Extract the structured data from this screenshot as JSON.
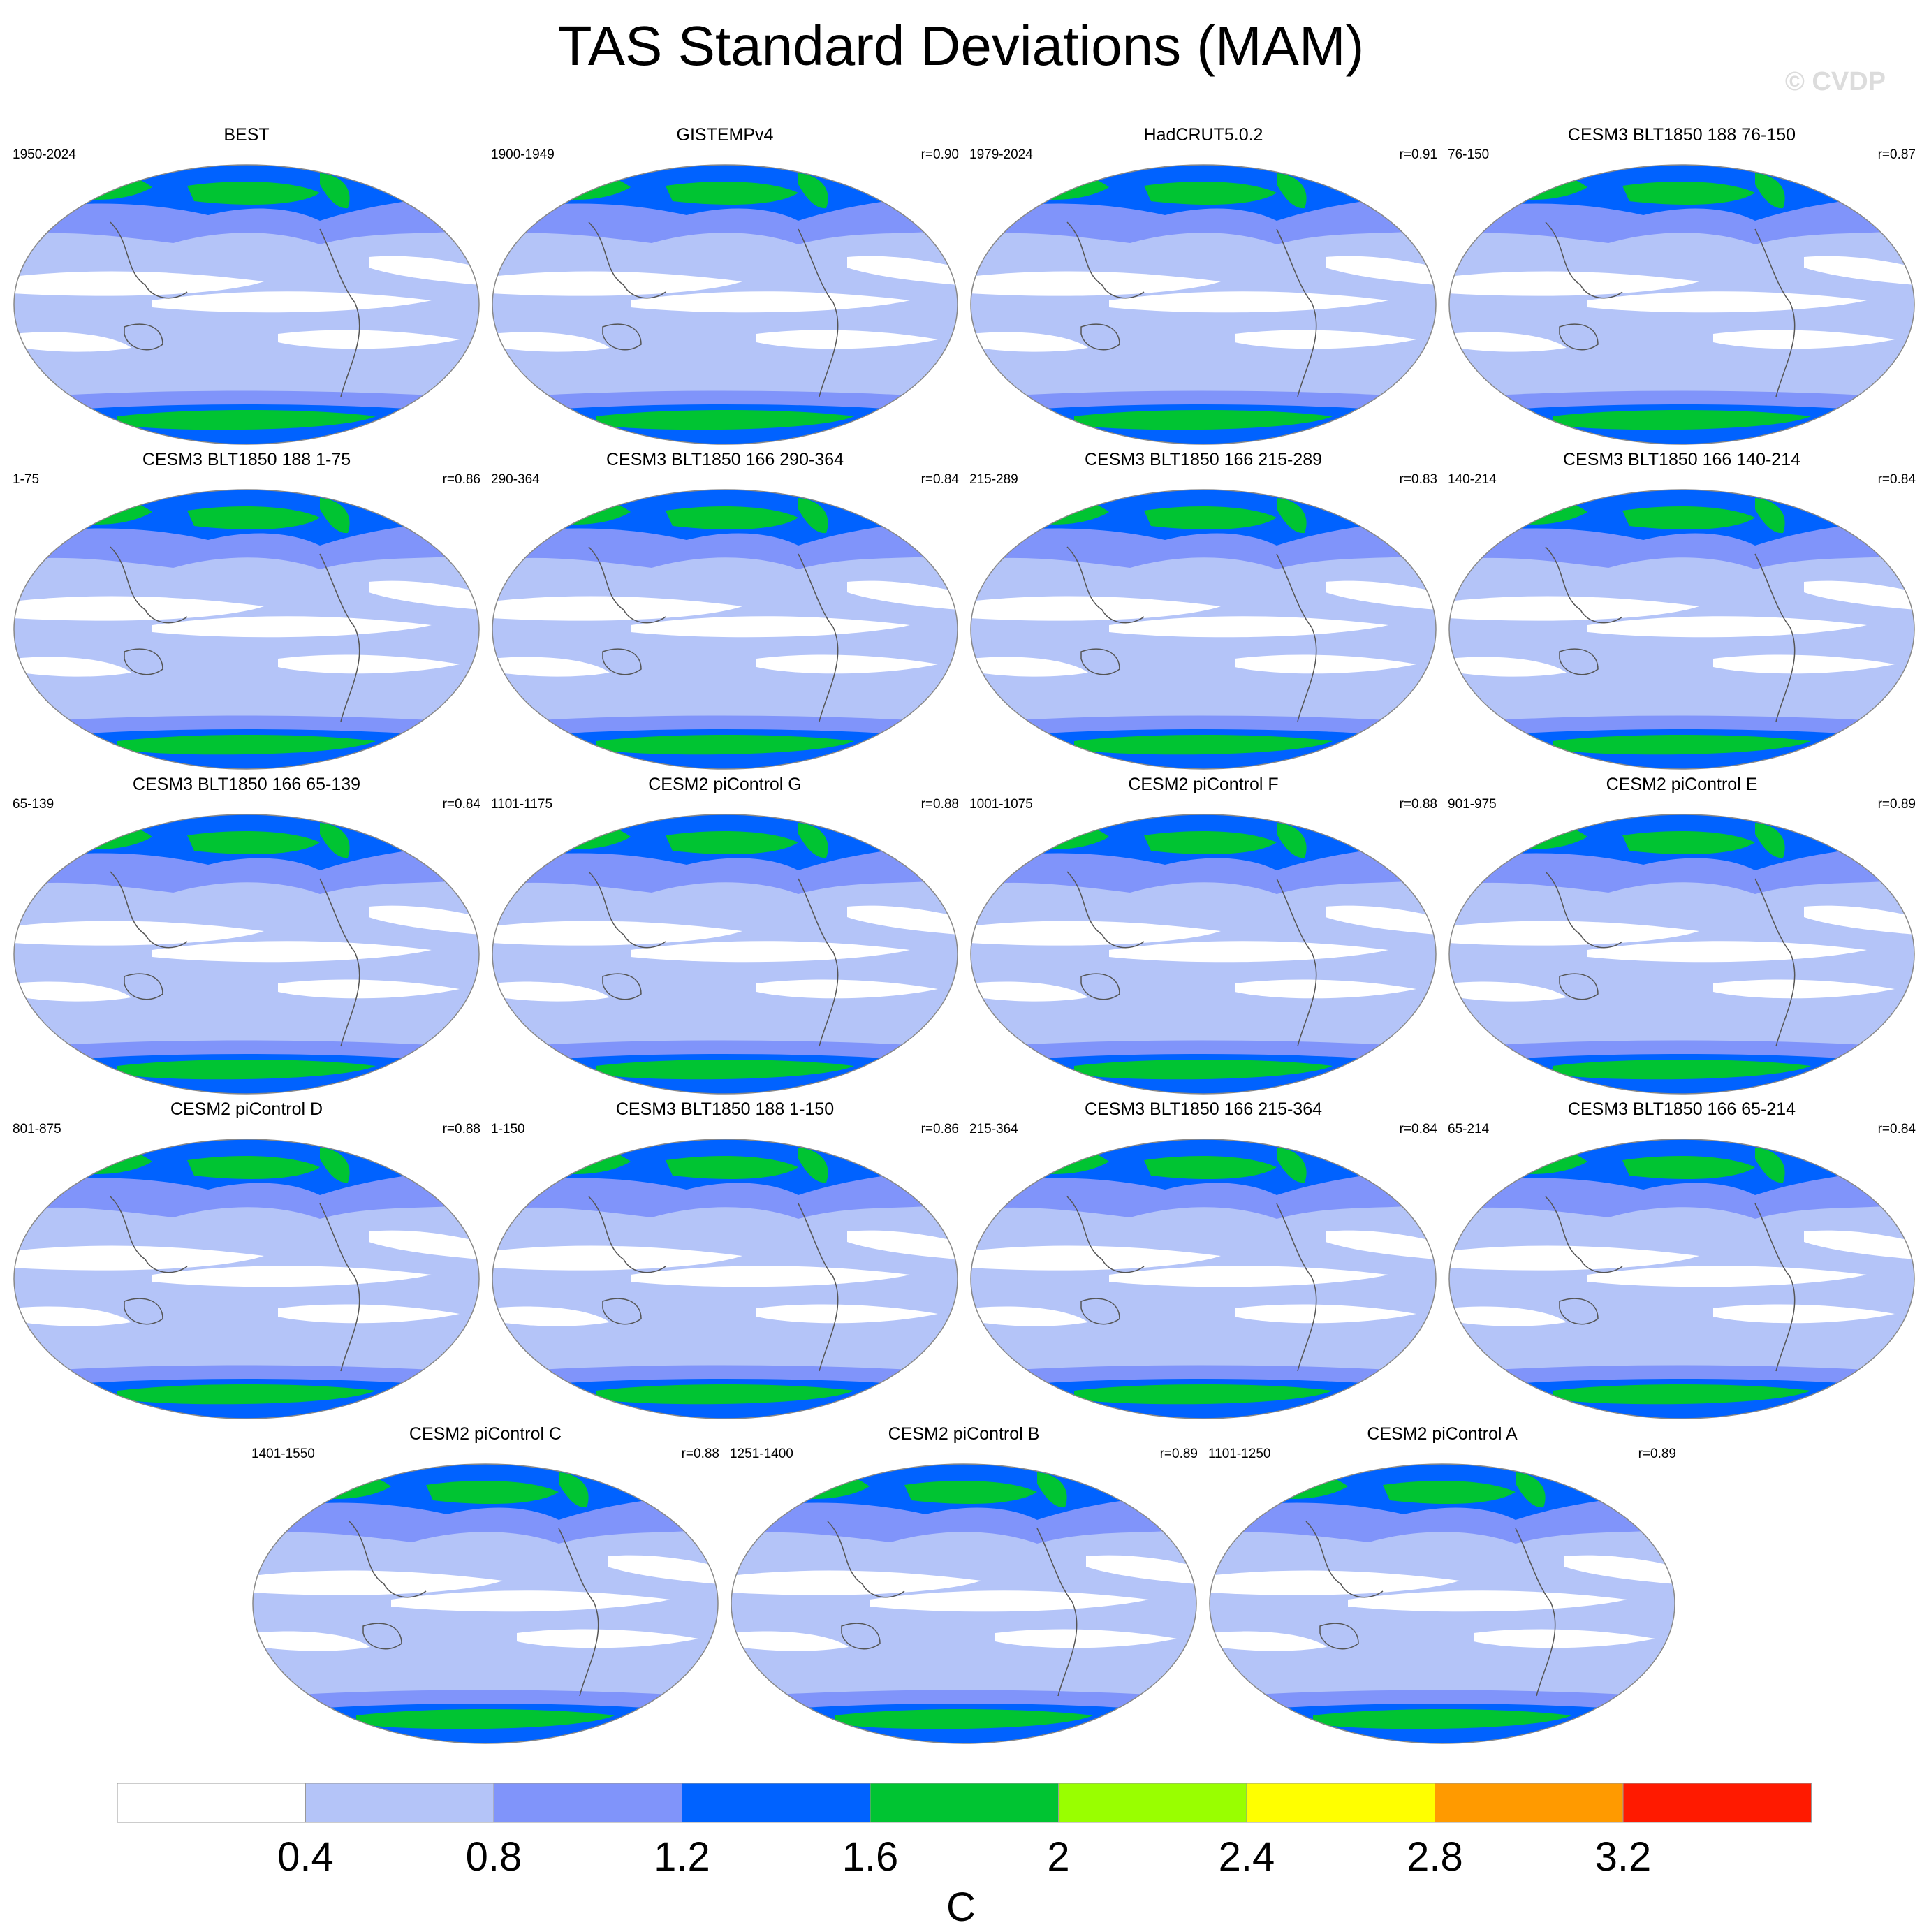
{
  "title": "TAS Standard Deviations (MAM)",
  "watermark": "© CVDP",
  "panels": [
    {
      "title": "BEST",
      "period": "1950-2024",
      "r": ""
    },
    {
      "title": "GISTEMPv4",
      "period": "1900-1949",
      "r": "r=0.90"
    },
    {
      "title": "HadCRUT5.0.2",
      "period": "1979-2024",
      "r": "r=0.91"
    },
    {
      "title": "CESM3 BLT1850 188 76-150",
      "period": "76-150",
      "r": "r=0.87"
    },
    {
      "title": "CESM3 BLT1850 188 1-75",
      "period": "1-75",
      "r": "r=0.86"
    },
    {
      "title": "CESM3 BLT1850 166 290-364",
      "period": "290-364",
      "r": "r=0.84"
    },
    {
      "title": "CESM3 BLT1850 166 215-289",
      "period": "215-289",
      "r": "r=0.83"
    },
    {
      "title": "CESM3 BLT1850 166 140-214",
      "period": "140-214",
      "r": "r=0.84"
    },
    {
      "title": "CESM3 BLT1850 166 65-139",
      "period": "65-139",
      "r": "r=0.84"
    },
    {
      "title": "CESM2 piControl G",
      "period": "1101-1175",
      "r": "r=0.88"
    },
    {
      "title": "CESM2 piControl F",
      "period": "1001-1075",
      "r": "r=0.88"
    },
    {
      "title": "CESM2 piControl E",
      "period": "901-975",
      "r": "r=0.89"
    },
    {
      "title": "CESM2 piControl D",
      "period": "801-875",
      "r": "r=0.88"
    },
    {
      "title": "CESM3 BLT1850 188 1-150",
      "period": "1-150",
      "r": "r=0.86"
    },
    {
      "title": "CESM3 BLT1850 166 215-364",
      "period": "215-364",
      "r": "r=0.84"
    },
    {
      "title": "CESM3 BLT1850 166 65-214",
      "period": "65-214",
      "r": "r=0.84"
    },
    {
      "title": "CESM2 piControl C",
      "period": "1401-1550",
      "r": "r=0.88"
    },
    {
      "title": "CESM2 piControl B",
      "period": "1251-1400",
      "r": "r=0.89"
    },
    {
      "title": "CESM2 piControl A",
      "period": "1101-1250",
      "r": "r=0.89"
    }
  ],
  "colorbar": {
    "colors": [
      "#ffffff",
      "#b4c4f8",
      "#8094fa",
      "#0062ff",
      "#00c432",
      "#99ff00",
      "#ffff00",
      "#ff9a00",
      "#ff1a00"
    ],
    "ticks": [
      "0.4",
      "0.8",
      "1.2",
      "1.6",
      "2",
      "2.4",
      "2.8",
      "3.2"
    ],
    "unit": "C"
  }
}
